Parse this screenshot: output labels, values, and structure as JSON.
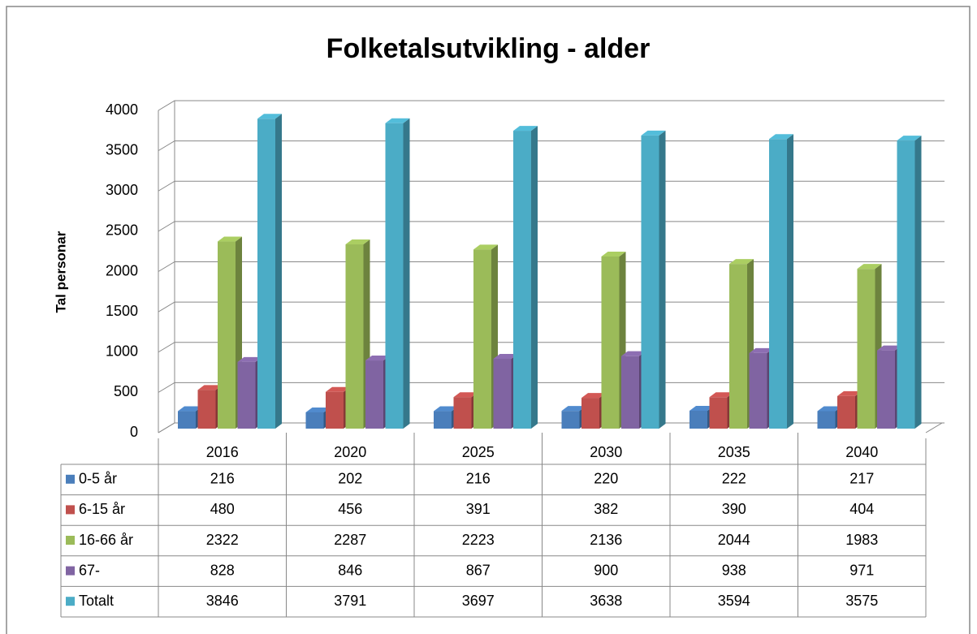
{
  "chart_data": {
    "type": "bar",
    "title": "Folketalsutvikling - alder",
    "y_axis_label": "Tal personar",
    "categories": [
      "2016",
      "2020",
      "2025",
      "2030",
      "2035",
      "2040"
    ],
    "series": [
      {
        "name": "0-5 år",
        "color": "#4a7ebb",
        "values": [
          216,
          202,
          216,
          220,
          222,
          217
        ]
      },
      {
        "name": "6-15 år",
        "color": "#c0504d",
        "values": [
          480,
          456,
          391,
          382,
          390,
          404
        ]
      },
      {
        "name": "16-66 år",
        "color": "#9bbb59",
        "values": [
          2322,
          2287,
          2223,
          2136,
          2044,
          1983
        ]
      },
      {
        "name": "67-",
        "color": "#8064a2",
        "values": [
          828,
          846,
          867,
          900,
          938,
          971
        ]
      },
      {
        "name": "Totalt",
        "color": "#4bacc6",
        "values": [
          3846,
          3791,
          3697,
          3638,
          3594,
          3575
        ]
      }
    ],
    "ylim": [
      0,
      4000
    ],
    "yticks": [
      0,
      500,
      1000,
      1500,
      2000,
      2500,
      3000,
      3500,
      4000
    ],
    "grid": true,
    "data_table": true
  }
}
